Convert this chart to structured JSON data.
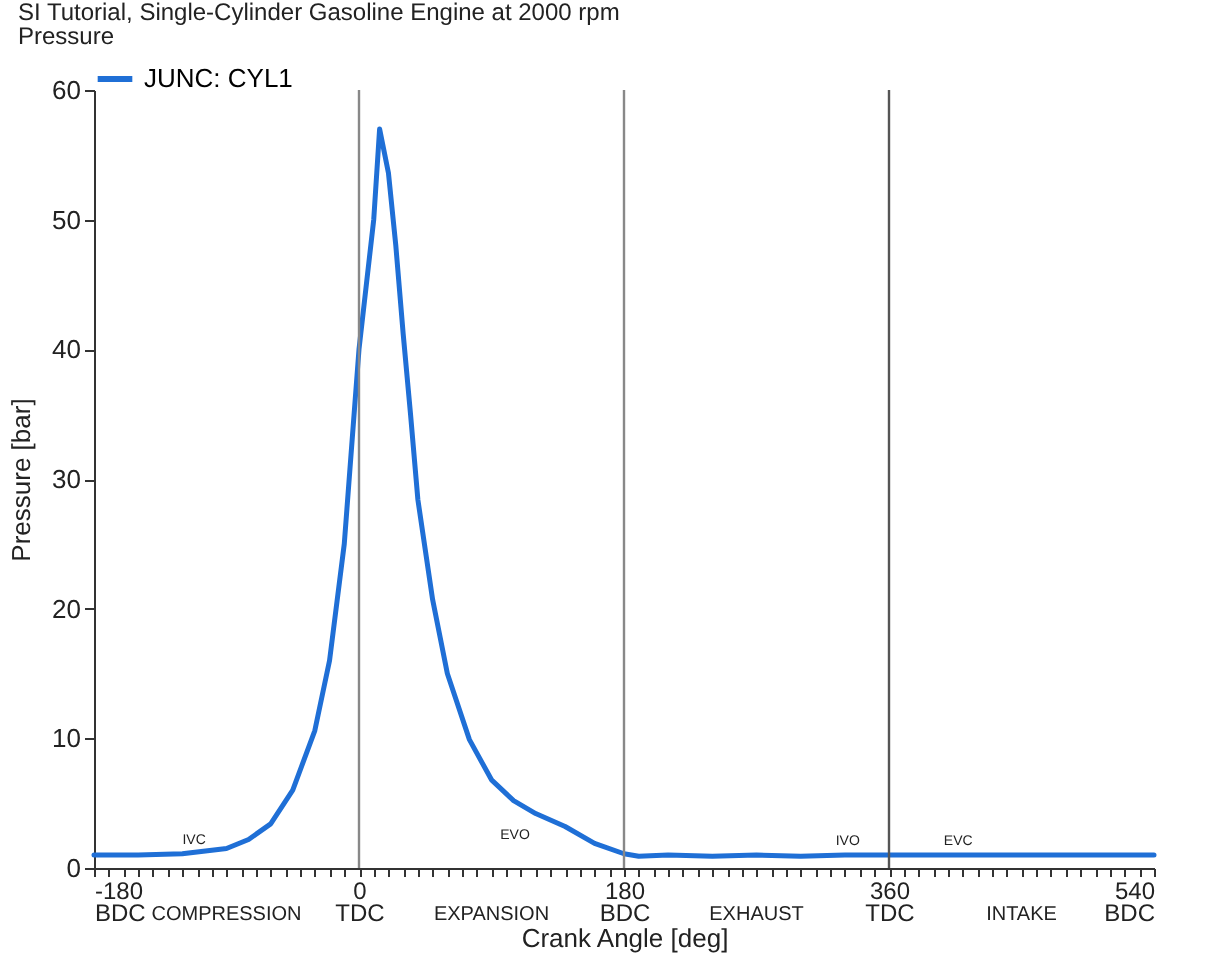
{
  "chart_data": {
    "type": "line",
    "title": "SI Tutorial, Single-Cylinder Gasoline Engine at 2000 rpm",
    "subtitle": "Pressure",
    "xlabel": "Crank Angle  [deg]",
    "ylabel": "Pressure  [bar]",
    "x": [
      -180,
      -150,
      -120,
      -90,
      -75,
      -60,
      -45,
      -30,
      -20,
      -10,
      0,
      5,
      10,
      14,
      20,
      25,
      30,
      35,
      40,
      50,
      60,
      75,
      90,
      105,
      120,
      140,
      160,
      180,
      190,
      210,
      240,
      270,
      300,
      330,
      360,
      400,
      450,
      500,
      540
    ],
    "series": [
      {
        "name": "JUNC: CYL1",
        "color": "#1f6fd6",
        "values": [
          1.0,
          1.0,
          1.1,
          1.5,
          2.2,
          3.4,
          6.0,
          10.6,
          16,
          25,
          40,
          45,
          50,
          57,
          53.6,
          48,
          41.2,
          35,
          28.4,
          20.7,
          15,
          9.9,
          6.8,
          5.2,
          4.2,
          3.2,
          1.9,
          1.1,
          0.9,
          1.0,
          0.9,
          1.0,
          0.9,
          1.0,
          1.0,
          1.0,
          1.0,
          1.0,
          1.0
        ]
      }
    ],
    "xlim": [
      -180,
      540
    ],
    "ylim": [
      0,
      60
    ],
    "xticks": [
      {
        "value": -180,
        "label": "-180\nBDC"
      },
      {
        "value": -170,
        "label": null
      },
      {
        "value": -160,
        "label": null
      },
      {
        "value": -150,
        "label": null
      },
      {
        "value": -140,
        "label": null
      },
      {
        "value": -130,
        "label": null
      },
      {
        "value": -120,
        "label": null
      },
      {
        "value": -110,
        "label": null
      },
      {
        "value": -100,
        "label": null
      },
      {
        "value": -90,
        "label": null
      },
      {
        "value": -80,
        "label": null
      },
      {
        "value": -70,
        "label": null
      },
      {
        "value": -60,
        "label": null
      },
      {
        "value": -50,
        "label": null
      },
      {
        "value": -40,
        "label": null
      },
      {
        "value": -30,
        "label": null
      },
      {
        "value": -20,
        "label": null
      },
      {
        "value": -10,
        "label": null
      },
      {
        "value": 0,
        "label": "0\nTDC"
      },
      {
        "value": 10,
        "label": null
      },
      {
        "value": 20,
        "label": null
      },
      {
        "value": 30,
        "label": null
      },
      {
        "value": 40,
        "label": null
      },
      {
        "value": 50,
        "label": null
      },
      {
        "value": 60,
        "label": null
      },
      {
        "value": 70,
        "label": null
      },
      {
        "value": 80,
        "label": null
      },
      {
        "value": 90,
        "label": null
      },
      {
        "value": 100,
        "label": null
      },
      {
        "value": 110,
        "label": null
      },
      {
        "value": 120,
        "label": null
      },
      {
        "value": 130,
        "label": null
      },
      {
        "value": 140,
        "label": null
      },
      {
        "value": 150,
        "label": null
      },
      {
        "value": 160,
        "label": null
      },
      {
        "value": 170,
        "label": null
      },
      {
        "value": 180,
        "label": "180\nBDC"
      },
      {
        "value": 190,
        "label": null
      },
      {
        "value": 200,
        "label": null
      },
      {
        "value": 210,
        "label": null
      },
      {
        "value": 220,
        "label": null
      },
      {
        "value": 230,
        "label": null
      },
      {
        "value": 240,
        "label": null
      },
      {
        "value": 250,
        "label": null
      },
      {
        "value": 260,
        "label": null
      },
      {
        "value": 270,
        "label": null
      },
      {
        "value": 280,
        "label": null
      },
      {
        "value": 290,
        "label": null
      },
      {
        "value": 300,
        "label": null
      },
      {
        "value": 310,
        "label": null
      },
      {
        "value": 320,
        "label": null
      },
      {
        "value": 330,
        "label": null
      },
      {
        "value": 340,
        "label": null
      },
      {
        "value": 350,
        "label": null
      },
      {
        "value": 360,
        "label": "360\nTDC"
      },
      {
        "value": 370,
        "label": null
      },
      {
        "value": 380,
        "label": null
      },
      {
        "value": 390,
        "label": null
      },
      {
        "value": 400,
        "label": null
      },
      {
        "value": 410,
        "label": null
      },
      {
        "value": 420,
        "label": null
      },
      {
        "value": 430,
        "label": null
      },
      {
        "value": 440,
        "label": null
      },
      {
        "value": 450,
        "label": null
      },
      {
        "value": 460,
        "label": null
      },
      {
        "value": 470,
        "label": null
      },
      {
        "value": 480,
        "label": null
      },
      {
        "value": 490,
        "label": null
      },
      {
        "value": 500,
        "label": null
      },
      {
        "value": 510,
        "label": null
      },
      {
        "value": 520,
        "label": null
      },
      {
        "value": 530,
        "label": null
      },
      {
        "value": 540,
        "label": "540\nBDC"
      }
    ],
    "yticks": [
      0,
      10,
      20,
      30,
      40,
      50,
      60
    ],
    "ref_lines": [
      {
        "axis": "x",
        "value": 0,
        "color": "#888888"
      },
      {
        "axis": "x",
        "value": 180,
        "color": "#888888"
      },
      {
        "axis": "x",
        "value": 360,
        "color": "#555555"
      }
    ],
    "annotations": [
      {
        "text": "IVC",
        "x": -112,
        "y": 1.1
      },
      {
        "text": "EVO",
        "x": 106,
        "y": 5.0
      },
      {
        "text": "IVO",
        "x": 332,
        "y": 1.0
      },
      {
        "text": "EVC",
        "x": 407,
        "y": 1.0
      },
      "COMPRESSION",
      "EXPANSION",
      "EXHAUST",
      "INTAKE"
    ],
    "legend": "top left",
    "grid": false,
    "marker": "none",
    "line_style": "solid"
  }
}
